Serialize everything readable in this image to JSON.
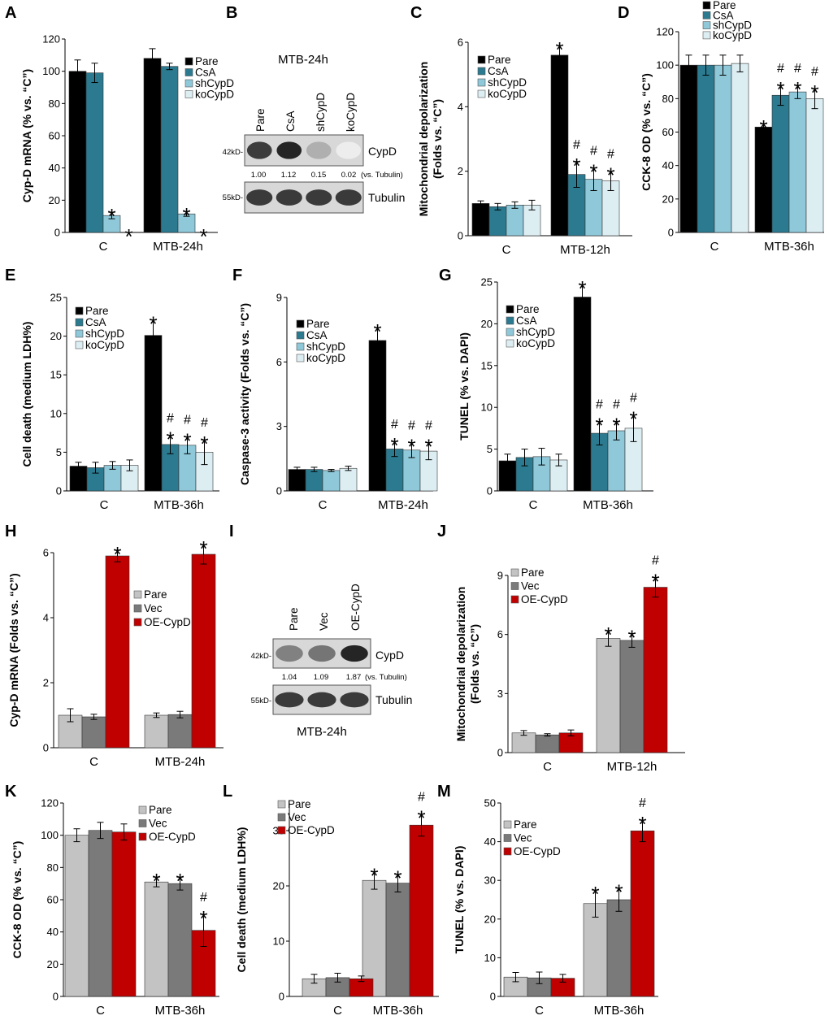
{
  "colors": {
    "Pare1": "#000000",
    "CsA": "#2b7a90",
    "shCypD": "#8ec8d9",
    "koCypD": "#ddeef3",
    "Pare2": "#c3c3c3",
    "Vec": "#7a7a7a",
    "OE-CypD": "#c00000"
  },
  "panels": {
    "A": "A",
    "B": "B",
    "C": "C",
    "D": "D",
    "E": "E",
    "F": "F",
    "G": "G",
    "H": "H",
    "I": "I",
    "J": "J",
    "K": "K",
    "L": "L",
    "M": "M"
  },
  "chart_data": [
    {
      "id": "A",
      "type": "bar",
      "ylabel": "Cyp-D mRNA (% vs. “C”)",
      "ylim": [
        0,
        120
      ],
      "yticks": [
        0,
        20,
        40,
        60,
        80,
        100,
        120
      ],
      "categories": [
        "C",
        "MTB-24h"
      ],
      "legend_position": "top-right",
      "series": [
        {
          "name": "Pare",
          "color_key": "Pare1",
          "values": [
            100,
            108
          ],
          "errors": [
            7,
            6
          ],
          "marks": [
            "",
            ""
          ]
        },
        {
          "name": "CsA",
          "color_key": "CsA",
          "values": [
            99,
            103
          ],
          "errors": [
            6,
            2
          ],
          "marks": [
            "",
            ""
          ]
        },
        {
          "name": "shCypD",
          "color_key": "shCypD",
          "values": [
            10.5,
            11.5
          ],
          "errors": [
            2,
            1.5
          ],
          "marks": [
            "*",
            "*"
          ]
        },
        {
          "name": "koCypD",
          "color_key": "koCypD",
          "values": [
            0,
            0
          ],
          "errors": [
            0,
            0
          ],
          "marks": [
            "*",
            "*"
          ]
        }
      ]
    },
    {
      "id": "C",
      "type": "bar",
      "ylabel": "Mitochondrial depolarization (Folds vs. “C”)",
      "ylim": [
        0,
        6
      ],
      "yticks": [
        0,
        2,
        4,
        6
      ],
      "categories": [
        "C",
        "MTB-12h"
      ],
      "legend_position": "top-right",
      "series": [
        {
          "name": "Pare",
          "color_key": "Pare1",
          "values": [
            1.0,
            5.6
          ],
          "errors": [
            0.08,
            0.3
          ],
          "marks": [
            "",
            "*"
          ]
        },
        {
          "name": "CsA",
          "color_key": "CsA",
          "values": [
            0.9,
            1.9
          ],
          "errors": [
            0.1,
            0.4
          ],
          "marks": [
            "",
            "#*"
          ]
        },
        {
          "name": "shCypD",
          "color_key": "shCypD",
          "values": [
            0.95,
            1.75
          ],
          "errors": [
            0.1,
            0.35
          ],
          "marks": [
            "",
            "#*"
          ]
        },
        {
          "name": "koCypD",
          "color_key": "koCypD",
          "values": [
            0.95,
            1.7
          ],
          "errors": [
            0.15,
            0.3
          ],
          "marks": [
            "",
            "#*"
          ]
        }
      ]
    },
    {
      "id": "D",
      "type": "bar",
      "ylabel": "CCK-8 OD (% vs. “C”)",
      "ylim": [
        0,
        120
      ],
      "yticks": [
        0,
        20,
        40,
        60,
        80,
        100,
        120
      ],
      "categories": [
        "C",
        "MTB-36h"
      ],
      "legend_position": "top-right",
      "series": [
        {
          "name": "Pare",
          "color_key": "Pare1",
          "values": [
            100,
            63
          ],
          "errors": [
            6,
            2
          ],
          "marks": [
            "",
            "*"
          ]
        },
        {
          "name": "CsA",
          "color_key": "CsA",
          "values": [
            100,
            82
          ],
          "errors": [
            6,
            6
          ],
          "marks": [
            "",
            "#*"
          ]
        },
        {
          "name": "shCypD",
          "color_key": "shCypD",
          "values": [
            100,
            84
          ],
          "errors": [
            6,
            4
          ],
          "marks": [
            "",
            "#*"
          ]
        },
        {
          "name": "koCypD",
          "color_key": "koCypD",
          "values": [
            101,
            80
          ],
          "errors": [
            5,
            6
          ],
          "marks": [
            "",
            "#*"
          ]
        }
      ]
    },
    {
      "id": "E",
      "type": "bar",
      "ylabel": "Cell death (medium LDH%)",
      "ylim": [
        0,
        25
      ],
      "yticks": [
        0,
        5,
        10,
        15,
        20,
        25
      ],
      "categories": [
        "C",
        "MTB-36h"
      ],
      "legend_position": "top-left",
      "series": [
        {
          "name": "Pare",
          "color_key": "Pare1",
          "values": [
            3.2,
            20.1
          ],
          "errors": [
            0.5,
            2.0
          ],
          "marks": [
            "",
            "*"
          ]
        },
        {
          "name": "CsA",
          "color_key": "CsA",
          "values": [
            3.0,
            6.0
          ],
          "errors": [
            0.7,
            1.2
          ],
          "marks": [
            "",
            "#*"
          ]
        },
        {
          "name": "shCypD",
          "color_key": "shCypD",
          "values": [
            3.3,
            5.9
          ],
          "errors": [
            0.5,
            1.1
          ],
          "marks": [
            "",
            "#*"
          ]
        },
        {
          "name": "koCypD",
          "color_key": "koCypD",
          "values": [
            3.3,
            5.0
          ],
          "errors": [
            0.7,
            1.6
          ],
          "marks": [
            "",
            "#*"
          ]
        }
      ]
    },
    {
      "id": "F",
      "type": "bar",
      "ylabel": "Caspase-3 activity (Folds vs. “C”)",
      "ylim": [
        0,
        9
      ],
      "yticks": [
        0,
        3,
        6,
        9
      ],
      "categories": [
        "C",
        "MTB-24h"
      ],
      "legend_position": "top-left",
      "series": [
        {
          "name": "Pare",
          "color_key": "Pare1",
          "values": [
            1.0,
            7.0
          ],
          "errors": [
            0.1,
            0.6
          ],
          "marks": [
            "",
            "*"
          ]
        },
        {
          "name": "CsA",
          "color_key": "CsA",
          "values": [
            1.0,
            1.95
          ],
          "errors": [
            0.1,
            0.35
          ],
          "marks": [
            "",
            "#*"
          ]
        },
        {
          "name": "shCypD",
          "color_key": "shCypD",
          "values": [
            0.95,
            1.9
          ],
          "errors": [
            0.05,
            0.35
          ],
          "marks": [
            "",
            "#*"
          ]
        },
        {
          "name": "koCypD",
          "color_key": "koCypD",
          "values": [
            1.05,
            1.85
          ],
          "errors": [
            0.1,
            0.4
          ],
          "marks": [
            "",
            "#*"
          ]
        }
      ]
    },
    {
      "id": "G",
      "type": "bar",
      "ylabel": "TUNEL (% vs. DAPI)",
      "ylim": [
        0,
        25
      ],
      "yticks": [
        0,
        5,
        10,
        15,
        20,
        25
      ],
      "categories": [
        "C",
        "MTB-36h"
      ],
      "legend_position": "top-left",
      "series": [
        {
          "name": "Pare",
          "color_key": "Pare1",
          "values": [
            3.6,
            23.2
          ],
          "errors": [
            0.8,
            1.5
          ],
          "marks": [
            "",
            "*"
          ]
        },
        {
          "name": "CsA",
          "color_key": "CsA",
          "values": [
            4.0,
            6.9
          ],
          "errors": [
            1.0,
            1.4
          ],
          "marks": [
            "",
            "#*"
          ]
        },
        {
          "name": "shCypD",
          "color_key": "shCypD",
          "values": [
            4.1,
            7.2
          ],
          "errors": [
            1.0,
            1.1
          ],
          "marks": [
            "",
            "#*"
          ]
        },
        {
          "name": "koCypD",
          "color_key": "koCypD",
          "values": [
            3.7,
            7.5
          ],
          "errors": [
            0.7,
            1.6
          ],
          "marks": [
            "",
            "#*"
          ]
        }
      ]
    },
    {
      "id": "H",
      "type": "bar",
      "ylabel": "Cyp-D mRNA (Folds vs. “C”)",
      "ylim": [
        0,
        6
      ],
      "yticks": [
        0,
        2,
        4,
        6
      ],
      "categories": [
        "C",
        "MTB-24h"
      ],
      "legend_position": "center-right",
      "series": [
        {
          "name": "Pare",
          "color_key": "Pare2",
          "values": [
            1.0,
            1.0
          ],
          "errors": [
            0.2,
            0.07
          ],
          "marks": [
            "",
            ""
          ]
        },
        {
          "name": "Vec",
          "color_key": "Vec",
          "values": [
            0.95,
            1.02
          ],
          "errors": [
            0.08,
            0.1
          ],
          "marks": [
            "",
            ""
          ]
        },
        {
          "name": "OE-CypD",
          "color_key": "OE-CypD",
          "values": [
            5.9,
            5.95
          ],
          "errors": [
            0.18,
            0.3
          ],
          "marks": [
            "*",
            "*"
          ]
        }
      ]
    },
    {
      "id": "J",
      "type": "bar",
      "ylabel": "Mitochondrial depolarization (Folds vs. “C”)",
      "ylim": [
        0,
        9
      ],
      "yticks": [
        0,
        3,
        6,
        9
      ],
      "categories": [
        "C",
        "MTB-12h"
      ],
      "legend_position": "top-left",
      "series": [
        {
          "name": "Pare",
          "color_key": "Pare2",
          "values": [
            1.0,
            5.8
          ],
          "errors": [
            0.12,
            0.4
          ],
          "marks": [
            "",
            "*"
          ]
        },
        {
          "name": "Vec",
          "color_key": "Vec",
          "values": [
            0.9,
            5.7
          ],
          "errors": [
            0.06,
            0.35
          ],
          "marks": [
            "",
            "*"
          ]
        },
        {
          "name": "OE-CypD",
          "color_key": "OE-CypD",
          "values": [
            1.0,
            8.4
          ],
          "errors": [
            0.15,
            0.5
          ],
          "marks": [
            "",
            "#*"
          ]
        }
      ]
    },
    {
      "id": "K",
      "type": "bar",
      "ylabel": "CCK-8 OD (% vs. “C”)",
      "ylim": [
        0,
        120
      ],
      "yticks": [
        0,
        20,
        40,
        60,
        80,
        100,
        120
      ],
      "categories": [
        "C",
        "MTB-36h"
      ],
      "legend_position": "top-right",
      "series": [
        {
          "name": "Pare",
          "color_key": "Pare2",
          "values": [
            100,
            71
          ],
          "errors": [
            4,
            3
          ],
          "marks": [
            "",
            "*"
          ]
        },
        {
          "name": "Vec",
          "color_key": "Vec",
          "values": [
            103,
            70
          ],
          "errors": [
            5,
            4
          ],
          "marks": [
            "",
            "*"
          ]
        },
        {
          "name": "OE-CypD",
          "color_key": "OE-CypD",
          "values": [
            102,
            41
          ],
          "errors": [
            5,
            10
          ],
          "marks": [
            "",
            "#*"
          ]
        }
      ]
    },
    {
      "id": "L",
      "type": "bar",
      "ylabel": "Cell death (medium LDH%)",
      "ylim": [
        0,
        35
      ],
      "yticks": [
        0,
        10,
        20,
        30
      ],
      "categories": [
        "C",
        "MTB-36h"
      ],
      "legend_position": "top-left",
      "series": [
        {
          "name": "Pare",
          "color_key": "Pare2",
          "values": [
            3.2,
            21.0
          ],
          "errors": [
            0.8,
            1.6
          ],
          "marks": [
            "",
            "*"
          ]
        },
        {
          "name": "Vec",
          "color_key": "Vec",
          "values": [
            3.4,
            20.5
          ],
          "errors": [
            0.8,
            1.6
          ],
          "marks": [
            "",
            "*"
          ]
        },
        {
          "name": "OE-CypD",
          "color_key": "OE-CypD",
          "values": [
            3.2,
            31.0
          ],
          "errors": [
            0.5,
            2.0
          ],
          "marks": [
            "",
            "#*"
          ]
        }
      ]
    },
    {
      "id": "M",
      "type": "bar",
      "ylabel": "TUNEL (% vs. DAPI)",
      "ylim": [
        0,
        50
      ],
      "yticks": [
        0,
        10,
        20,
        30,
        40,
        50
      ],
      "categories": [
        "C",
        "MTB-36h"
      ],
      "legend_position": "top-left",
      "series": [
        {
          "name": "Pare",
          "color_key": "Pare2",
          "values": [
            5.0,
            24.0
          ],
          "errors": [
            1.2,
            3.5
          ],
          "marks": [
            "",
            "*"
          ]
        },
        {
          "name": "Vec",
          "color_key": "Vec",
          "values": [
            4.8,
            25.0
          ],
          "errors": [
            1.5,
            3.0
          ],
          "marks": [
            "",
            "*"
          ]
        },
        {
          "name": "OE-CypD",
          "color_key": "OE-CypD",
          "values": [
            4.7,
            42.8
          ],
          "errors": [
            1.0,
            2.8
          ],
          "marks": [
            "",
            "#*"
          ]
        }
      ]
    }
  ],
  "blot_b": {
    "title": "MTB-24h",
    "lanes": [
      "Pare",
      "CsA",
      "shCypD",
      "koCypD"
    ],
    "marker_top": "42kD-",
    "marker_bottom": "55kD-",
    "band_top": "CypD",
    "band_bottom": "Tubulin",
    "ratios": [
      "1.00",
      "1.12",
      "0.15",
      "0.02"
    ],
    "ratio_note": "(vs. Tubulin)",
    "intensity": [
      0.85,
      0.95,
      0.35,
      0.08
    ]
  },
  "blot_i": {
    "title": "MTB-24h",
    "lanes": [
      "Pare",
      "Vec",
      "OE-CypD"
    ],
    "marker_top": "42kD-",
    "marker_bottom": "55kD-",
    "band_top": "CypD",
    "band_bottom": "Tubulin",
    "ratios": [
      "1.04",
      "1.09",
      "1.87"
    ],
    "ratio_note": "(vs. Tubulin)",
    "intensity": [
      0.55,
      0.6,
      0.95
    ]
  }
}
